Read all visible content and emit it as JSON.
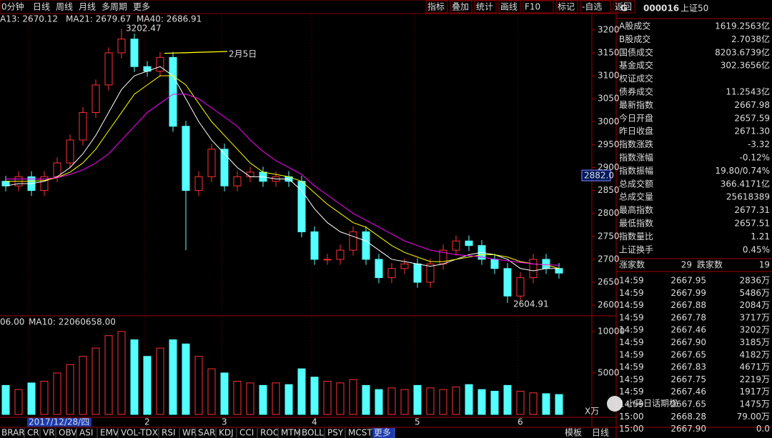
{
  "toolbar": {
    "left": [
      "0分钟",
      "日线",
      "周线",
      "月线",
      "多周期",
      "更多"
    ],
    "right": [
      "指标",
      "叠加",
      "统计",
      "画线",
      "F10",
      "标记",
      "-自选",
      "返回"
    ]
  },
  "chart_data": {
    "type": "candlestick",
    "categories": [
      null,
      null,
      "2017/12/28/四",
      null,
      null,
      null,
      null,
      null,
      null,
      null,
      null,
      "2",
      null,
      null,
      null,
      null,
      null,
      "3",
      null,
      null,
      null,
      null,
      null,
      null,
      "4",
      null,
      null,
      null,
      null,
      null,
      null,
      null,
      "5",
      null,
      null,
      null,
      null,
      null,
      null,
      null,
      "6",
      null,
      null,
      null
    ],
    "open": [
      2870,
      2860,
      2880,
      2850,
      2880,
      2910,
      2960,
      3020,
      3080,
      3150,
      3180,
      3120,
      3110,
      3140,
      2990,
      2850,
      2880,
      2940,
      2860,
      2880,
      2890,
      2870,
      2880,
      2870,
      2760,
      2700,
      2700,
      2720,
      2760,
      2700,
      2660,
      2680,
      2690,
      2650,
      2690,
      2720,
      2740,
      2730,
      2700,
      2680,
      2620,
      2660,
      2700,
      2680
    ],
    "high": [
      2882,
      2892,
      2892,
      2892,
      2922,
      2972,
      3032,
      3092,
      3162,
      3202.47,
      3192,
      3132,
      3152,
      3152,
      3002,
      2892,
      2952,
      2952,
      2892,
      2902,
      2902,
      2892,
      2892,
      2882,
      2772,
      2712,
      2732,
      2772,
      2772,
      2712,
      2692,
      2702,
      2702,
      2702,
      2732,
      2752,
      2752,
      2742,
      2712,
      2692,
      2672,
      2712,
      2712,
      2692
    ],
    "low": [
      2848,
      2848,
      2838,
      2838,
      2868,
      2898,
      2948,
      3008,
      3068,
      3138,
      3108,
      3098,
      3098,
      2978,
      2720,
      2838,
      2868,
      2848,
      2848,
      2868,
      2858,
      2858,
      2858,
      2748,
      2688,
      2688,
      2688,
      2708,
      2688,
      2648,
      2648,
      2668,
      2638,
      2638,
      2678,
      2708,
      2718,
      2688,
      2668,
      2604.91,
      2608,
      2648,
      2668,
      2658
    ],
    "close": [
      2860,
      2880,
      2850,
      2880,
      2910,
      2960,
      3020,
      3080,
      3150,
      3180,
      3120,
      3110,
      3140,
      2990,
      2850,
      2880,
      2940,
      2860,
      2880,
      2890,
      2870,
      2880,
      2870,
      2760,
      2700,
      2700,
      2720,
      2760,
      2700,
      2660,
      2680,
      2690,
      2650,
      2690,
      2720,
      2740,
      2730,
      2700,
      2680,
      2620,
      2660,
      2700,
      2680,
      2670
    ],
    "up_color": "#ff3232",
    "down_color": "#54ffff",
    "series": [
      {
        "name": "A13: 2670.12",
        "color": "#ffffff",
        "values": [
          2860,
          2865,
          2865,
          2870,
          2880,
          2900,
          2930,
          2970,
          3020,
          3070,
          3100,
          3110,
          3120,
          3100,
          3050,
          3000,
          2960,
          2930,
          2900,
          2880,
          2880,
          2875,
          2875,
          2850,
          2810,
          2780,
          2760,
          2750,
          2740,
          2720,
          2700,
          2695,
          2690,
          2685,
          2690,
          2700,
          2710,
          2715,
          2710,
          2700,
          2680,
          2675,
          2680,
          2680
        ]
      },
      {
        "name": "MA21: 2679.67",
        "color": "#ffff00",
        "values": [
          2870,
          2870,
          2870,
          2872,
          2878,
          2890,
          2910,
          2940,
          2980,
          3020,
          3060,
          3080,
          3100,
          3100,
          3080,
          3040,
          3000,
          2970,
          2940,
          2910,
          2890,
          2885,
          2880,
          2870,
          2845,
          2820,
          2800,
          2780,
          2770,
          2750,
          2730,
          2715,
          2705,
          2695,
          2695,
          2700,
          2705,
          2710,
          2710,
          2705,
          2695,
          2690,
          2688,
          2680
        ]
      },
      {
        "name": "MA40: 2686.91",
        "color": "#ff00ff",
        "values": [
          2875,
          2875,
          2875,
          2875,
          2878,
          2885,
          2895,
          2910,
          2930,
          2960,
          2990,
          3020,
          3040,
          3060,
          3060,
          3050,
          3030,
          3010,
          2990,
          2960,
          2935,
          2915,
          2900,
          2885,
          2860,
          2840,
          2820,
          2800,
          2785,
          2770,
          2755,
          2740,
          2730,
          2720,
          2715,
          2710,
          2708,
          2705,
          2700,
          2697,
          2693,
          2690,
          2688,
          2687
        ]
      }
    ],
    "ylim": [
      2580,
      3234
    ],
    "yticks": [
      3200,
      3150,
      3100,
      3050,
      3000,
      2950,
      2900,
      2850,
      2800,
      2750,
      2700,
      2650,
      2600
    ],
    "cursor_value": {
      "value": 2882,
      "label": "2882.0"
    },
    "high_label": 3202.47,
    "low_label": 2604.91,
    "annotation": "2月5日",
    "volume_legend": [
      "06.00",
      "MA10: 22060658.00"
    ],
    "volume": [
      3500,
      3000,
      3800,
      4000,
      5000,
      6000,
      7000,
      8000,
      9500,
      10000,
      9000,
      7000,
      8000,
      9000,
      8500,
      7000,
      5500,
      5000,
      4000,
      3800,
      3500,
      3800,
      3600,
      5500,
      4500,
      4000,
      3800,
      4200,
      3500,
      3000,
      3200,
      3000,
      3500,
      3200,
      3000,
      3300,
      3600,
      3000,
      2800,
      3500,
      2800,
      2600,
      2500,
      2400
    ],
    "vlim": [
      0,
      11200
    ],
    "vticks": [
      10000,
      5000
    ],
    "volume_unit": "X万"
  },
  "panel": {
    "header": [
      "G",
      "000016",
      "上证50"
    ],
    "rows": [
      {
        "label": "A股成交",
        "value": "1619.2563亿",
        "color": "#ffff55"
      },
      {
        "label": "B股成交",
        "value": "2.7038亿",
        "color": "#ffff55"
      },
      {
        "label": "国债成交",
        "value": "8203.6739亿",
        "color": "#ffff55"
      },
      {
        "label": "基金成交",
        "value": "302.3656亿",
        "color": "#ffff55"
      },
      {
        "label": "权证成交",
        "value": "",
        "color": "#ffff55"
      },
      {
        "label": "债券成交",
        "value": "11.2543亿",
        "color": "#ffff55"
      },
      {
        "label": "最新指数",
        "value": "2667.98",
        "color": "#33ff33"
      },
      {
        "label": "今日开盘",
        "value": "2657.59",
        "color": "#33ff33"
      },
      {
        "label": "昨日收盘",
        "value": "2671.30",
        "color": "#ffffff"
      },
      {
        "label": "指数涨跌",
        "value": "-3.32",
        "color": "#33ff33"
      },
      {
        "label": "指数涨幅",
        "value": "-0.12%",
        "color": "#33ff33"
      },
      {
        "label": "指数振幅",
        "value": "19.80/0.74%",
        "color": "#ffffff"
      },
      {
        "label": "总成交额",
        "value": "366.4171亿",
        "color": "#ffff55"
      },
      {
        "label": "总成交量",
        "value": "25618389",
        "color": "#ffff55"
      },
      {
        "label": "最高指数",
        "value": "2677.31",
        "color": "#ff3232"
      },
      {
        "label": "最低指数",
        "value": "2657.51",
        "color": "#33ff33"
      },
      {
        "label": "指数量比",
        "value": "1.21",
        "color": "#ff3232"
      },
      {
        "label": "上证换手",
        "value": "0.45%",
        "color": "#ffffff"
      }
    ],
    "breadth": [
      "涨家数",
      "29",
      "跌家数",
      "19"
    ],
    "ticks": [
      [
        "14:59",
        "2667.95",
        "2836万"
      ],
      [
        "14:59",
        "2667.99",
        "5486万"
      ],
      [
        "14:59",
        "2667.88",
        "2084万"
      ],
      [
        "14:59",
        "2667.78",
        "3717万"
      ],
      [
        "14:59",
        "2667.46",
        "3202万"
      ],
      [
        "14:59",
        "2667.90",
        "3185万"
      ],
      [
        "14:59",
        "2667.65",
        "4182万"
      ],
      [
        "14:59",
        "2667.83",
        "4671万"
      ],
      [
        "14:59",
        "2667.75",
        "2219万"
      ],
      [
        "14:59",
        "2667.46",
        "1917万"
      ],
      [
        "14:59",
        "2667.65",
        "1475万"
      ],
      [
        "15:00",
        "2668.28",
        "79.00万"
      ],
      [
        "15:00",
        "2667.90",
        "0.0"
      ]
    ],
    "watermark": "小马日话期权"
  },
  "bottom_tabs": {
    "left": [
      "BRAR",
      "CR",
      "VR",
      "OBV",
      "ASI",
      "EMV",
      "VOL-TDX",
      "RSI",
      "WR",
      "SAR",
      "KDJ",
      "CCI",
      "ROC",
      "MTM",
      "BOLL",
      "PSY",
      "MCST",
      "更多"
    ],
    "right": [
      "模板",
      "日线"
    ]
  }
}
